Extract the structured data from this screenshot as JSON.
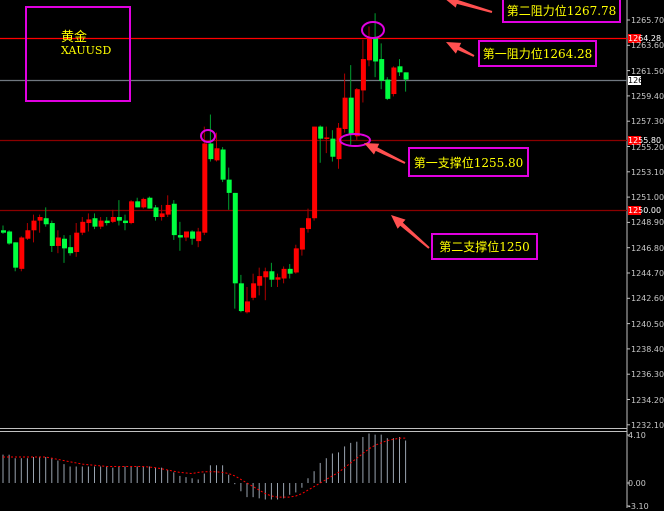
{
  "title_box": {
    "name": "黄金",
    "symbol": "XAUUSD"
  },
  "annotations": [
    {
      "label": "第二阻力位1267.78"
    },
    {
      "label": "第一阻力位1264.28"
    },
    {
      "label": "第一支撑位1255.80"
    },
    {
      "label": "第二支撑位1250"
    }
  ],
  "colors": {
    "bull": "#ff0000",
    "bear": "#00ff40",
    "annotation_border": "#e000e0",
    "annotation_text": "#ffff00",
    "arrow": "#ff5050",
    "signal": "#ff0000",
    "histogram": "#9aa4b0"
  },
  "chart_data": [
    {
      "type": "candlestick",
      "ylim": [
        1231.9,
        1267.4
      ],
      "levels": [
        {
          "price": 1264.28,
          "color": "#ff0000",
          "tag": "1264.28"
        },
        {
          "price": 1260.8,
          "color": "#707880",
          "tag": "1260.80"
        },
        {
          "price": 1255.8,
          "color": "#8b0000",
          "tag": "1255.80"
        },
        {
          "price": 1250.0,
          "color": "#8b0000",
          "tag": "1250.00"
        }
      ],
      "yticks": [
        "1265.70",
        "1263.60",
        "1261.50",
        "1259.40",
        "1257.30",
        "1255.20",
        "1253.10",
        "1251.00",
        "1248.90",
        "1246.80",
        "1244.70",
        "1242.60",
        "1240.50",
        "1238.40",
        "1236.30",
        "1234.20",
        "1232.10"
      ],
      "ohlc": [
        [
          1248.3,
          1248.7,
          1248.0,
          1248.1
        ],
        [
          1248.2,
          1248.3,
          1247.1,
          1247.2
        ],
        [
          1247.3,
          1247.3,
          1244.9,
          1245.2
        ],
        [
          1245.1,
          1247.8,
          1244.9,
          1247.7
        ],
        [
          1247.6,
          1248.9,
          1247.5,
          1248.3
        ],
        [
          1248.3,
          1249.6,
          1247.3,
          1249.1
        ],
        [
          1249.1,
          1249.6,
          1248.1,
          1249.4
        ],
        [
          1249.3,
          1250.2,
          1248.6,
          1248.8
        ],
        [
          1248.9,
          1249.1,
          1246.5,
          1247.0
        ],
        [
          1247.0,
          1248.3,
          1246.4,
          1247.7
        ],
        [
          1247.6,
          1247.9,
          1245.6,
          1246.8
        ],
        [
          1246.9,
          1247.9,
          1246.2,
          1246.4
        ],
        [
          1246.5,
          1248.9,
          1246.1,
          1248.1
        ],
        [
          1248.1,
          1249.4,
          1247.9,
          1249.0
        ],
        [
          1248.9,
          1249.7,
          1248.2,
          1249.2
        ],
        [
          1249.3,
          1249.7,
          1248.4,
          1248.6
        ],
        [
          1248.6,
          1249.4,
          1248.4,
          1249.1
        ],
        [
          1249.1,
          1249.4,
          1248.7,
          1248.9
        ],
        [
          1249.0,
          1250.0,
          1248.9,
          1249.4
        ],
        [
          1249.4,
          1250.8,
          1248.7,
          1249.1
        ],
        [
          1249.1,
          1249.6,
          1248.3,
          1248.9
        ],
        [
          1248.9,
          1250.8,
          1248.8,
          1250.7
        ],
        [
          1250.7,
          1251.0,
          1250.2,
          1250.2
        ],
        [
          1250.2,
          1251.0,
          1250.1,
          1250.9
        ],
        [
          1251.0,
          1251.1,
          1250.1,
          1250.1
        ],
        [
          1250.2,
          1250.4,
          1249.1,
          1249.4
        ],
        [
          1249.4,
          1250.4,
          1249.1,
          1249.7
        ],
        [
          1249.6,
          1251.2,
          1249.4,
          1250.4
        ],
        [
          1250.5,
          1250.8,
          1247.5,
          1247.9
        ],
        [
          1247.9,
          1249.0,
          1246.6,
          1247.7
        ],
        [
          1247.7,
          1248.2,
          1247.4,
          1248.2
        ],
        [
          1248.2,
          1248.3,
          1247.1,
          1247.6
        ],
        [
          1247.4,
          1248.5,
          1246.9,
          1248.2
        ],
        [
          1248.1,
          1256.9,
          1247.9,
          1255.5
        ],
        [
          1255.5,
          1257.9,
          1254.0,
          1254.2
        ],
        [
          1254.1,
          1256.4,
          1254.0,
          1255.1
        ],
        [
          1255.0,
          1255.2,
          1252.3,
          1252.5
        ],
        [
          1252.5,
          1253.5,
          1250.0,
          1251.4
        ],
        [
          1251.4,
          1251.4,
          1241.8,
          1243.9
        ],
        [
          1243.9,
          1244.6,
          1241.5,
          1241.6
        ],
        [
          1241.5,
          1243.6,
          1241.4,
          1242.4
        ],
        [
          1242.7,
          1244.7,
          1242.5,
          1243.9
        ],
        [
          1243.7,
          1245.2,
          1242.9,
          1244.5
        ],
        [
          1244.4,
          1245.2,
          1242.5,
          1244.9
        ],
        [
          1244.9,
          1245.6,
          1243.6,
          1244.2
        ],
        [
          1244.2,
          1244.7,
          1243.6,
          1244.4
        ],
        [
          1244.3,
          1245.3,
          1243.9,
          1245.1
        ],
        [
          1245.1,
          1245.5,
          1244.3,
          1244.7
        ],
        [
          1244.8,
          1247.1,
          1244.7,
          1246.8
        ],
        [
          1246.7,
          1248.5,
          1246.2,
          1248.5
        ],
        [
          1248.4,
          1250.1,
          1248.1,
          1249.3
        ],
        [
          1249.3,
          1256.9,
          1249.1,
          1256.9
        ],
        [
          1256.9,
          1257.0,
          1253.9,
          1255.9
        ],
        [
          1255.9,
          1256.9,
          1254.7,
          1256.0
        ],
        [
          1255.9,
          1256.6,
          1254.0,
          1254.4
        ],
        [
          1254.2,
          1257.2,
          1253.4,
          1256.8
        ],
        [
          1256.7,
          1261.3,
          1256.4,
          1259.3
        ],
        [
          1259.3,
          1262.0,
          1255.4,
          1256.2
        ],
        [
          1256.1,
          1260.1,
          1255.8,
          1260.0
        ],
        [
          1259.9,
          1264.1,
          1258.9,
          1262.5
        ],
        [
          1262.4,
          1265.2,
          1261.9,
          1264.3
        ],
        [
          1264.3,
          1266.3,
          1261.0,
          1262.3
        ],
        [
          1262.5,
          1263.8,
          1260.0,
          1260.7
        ],
        [
          1260.8,
          1261.0,
          1259.1,
          1259.2
        ],
        [
          1259.6,
          1261.9,
          1259.4,
          1261.8
        ],
        [
          1261.9,
          1262.5,
          1261.1,
          1261.4
        ],
        [
          1261.4,
          1261.4,
          1259.8,
          1260.8
        ]
      ]
    },
    {
      "type": "bar",
      "name": "MACD",
      "ylim": [
        -3.1,
        4.1
      ],
      "yticks": [
        "4.10",
        "0.00",
        "-3.10"
      ],
      "histogram": [
        2.4,
        2.4,
        2.1,
        2.1,
        2.1,
        2.2,
        2.2,
        2.2,
        2.1,
        1.9,
        1.6,
        1.4,
        1.4,
        1.4,
        1.4,
        1.4,
        1.4,
        1.4,
        1.3,
        1.4,
        1.4,
        1.4,
        1.4,
        1.4,
        1.4,
        1.3,
        1.3,
        1.1,
        0.9,
        0.6,
        0.5,
        0.4,
        0.3,
        0.8,
        1.5,
        1.5,
        1.5,
        0.7,
        -0.1,
        -0.7,
        -1.2,
        -1.2,
        -1.3,
        -1.4,
        -1.4,
        -1.4,
        -1.3,
        -1.0,
        -0.8,
        -0.4,
        0.4,
        1.0,
        1.7,
        2.1,
        2.5,
        2.6,
        3.1,
        3.4,
        3.5,
        3.9,
        4.2,
        4.1,
        4.1,
        3.8,
        3.8,
        3.9,
        3.6
      ],
      "signal": [
        2.2,
        2.2,
        2.2,
        2.2,
        2.2,
        2.2,
        2.2,
        2.2,
        2.1,
        2.0,
        1.9,
        1.8,
        1.7,
        1.6,
        1.55,
        1.5,
        1.45,
        1.4,
        1.4,
        1.4,
        1.4,
        1.4,
        1.4,
        1.4,
        1.35,
        1.3,
        1.2,
        1.1,
        1.0,
        0.9,
        0.85,
        0.8,
        0.9,
        0.95,
        0.95,
        0.95,
        0.9,
        0.8,
        0.6,
        0.3,
        0.0,
        -0.3,
        -0.6,
        -0.9,
        -1.1,
        -1.2,
        -1.2,
        -1.2,
        -1.1,
        -0.9,
        -0.6,
        -0.3,
        0.0,
        0.3,
        0.6,
        0.9,
        1.3,
        1.7,
        2.1,
        2.5,
        2.9,
        3.2,
        3.4,
        3.6,
        3.7,
        3.8,
        3.8
      ]
    }
  ]
}
